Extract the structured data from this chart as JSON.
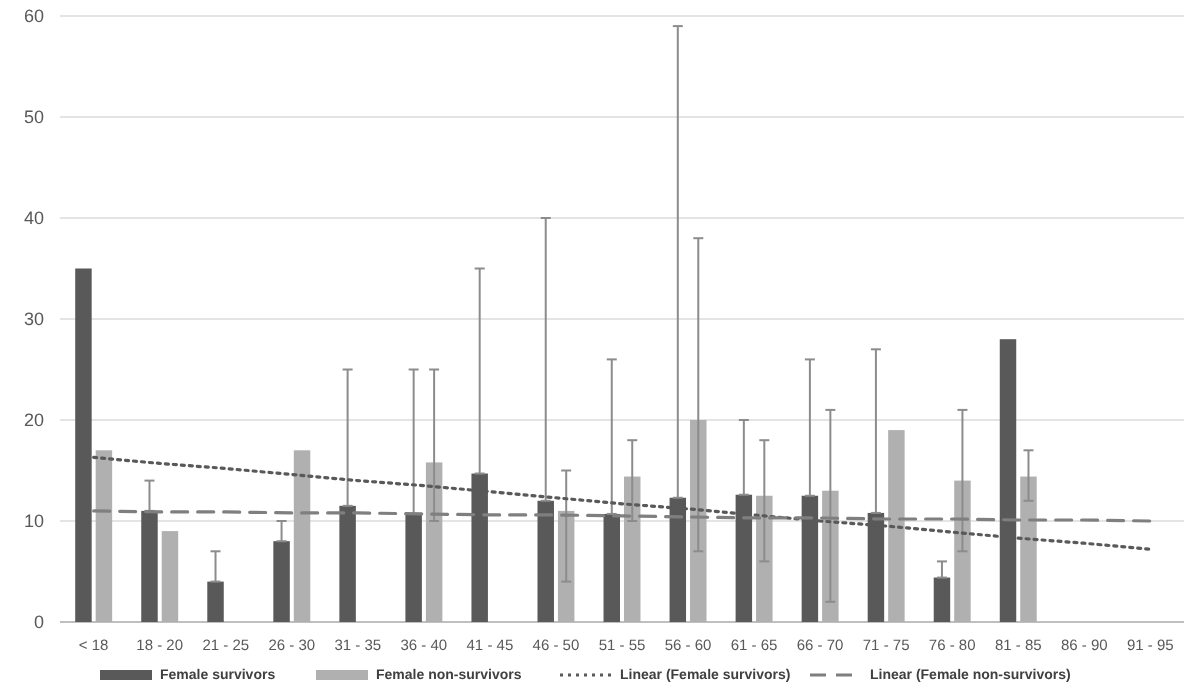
{
  "chart_data": {
    "type": "bar",
    "categories": [
      "< 18",
      "18 - 20",
      "21 - 25",
      "26 - 30",
      "31 - 35",
      "36 - 40",
      "41 - 45",
      "46 - 50",
      "51 - 55",
      "56 - 60",
      "61 - 65",
      "66 - 70",
      "71 - 75",
      "76 - 80",
      "81 - 85",
      "86 - 90",
      "91 - 95"
    ],
    "series": [
      {
        "name": "Female survivors",
        "color": "#595959",
        "values": [
          35,
          11,
          4,
          8,
          11.5,
          10.7,
          14.7,
          12,
          10.7,
          12.3,
          12.6,
          12.5,
          10.8,
          4.4,
          28,
          null,
          null
        ],
        "errors": [
          null,
          [
            11,
            14
          ],
          [
            4,
            7
          ],
          [
            8,
            10
          ],
          [
            11.5,
            25
          ],
          [
            10.7,
            25
          ],
          [
            14.7,
            35
          ],
          [
            12,
            40
          ],
          [
            10.7,
            26
          ],
          [
            12.3,
            59
          ],
          [
            12.6,
            20
          ],
          [
            12.5,
            26
          ],
          [
            10.8,
            27
          ],
          [
            4.4,
            6
          ],
          null,
          null,
          null
        ]
      },
      {
        "name": "Female non-survivors",
        "color": "#b0b0b0",
        "values": [
          17,
          9,
          null,
          17,
          null,
          15.8,
          null,
          11,
          14.4,
          20,
          12.5,
          13,
          19,
          14,
          14.4,
          null,
          null
        ],
        "errors": [
          null,
          null,
          null,
          null,
          null,
          [
            10,
            25
          ],
          null,
          [
            4,
            15
          ],
          [
            10,
            18
          ],
          [
            7,
            38
          ],
          [
            6,
            18
          ],
          [
            2,
            21
          ],
          null,
          [
            7,
            21
          ],
          [
            12,
            17
          ],
          null,
          null
        ]
      },
      {
        "name": "Linear (Female survivors)",
        "type": "line",
        "color": "#595959",
        "line_style": "dotted",
        "values": [
          16.3,
          15.7,
          15.2,
          14.6,
          14.0,
          13.5,
          12.9,
          12.3,
          11.7,
          11.2,
          10.6,
          10.0,
          9.5,
          8.9,
          8.3,
          7.8,
          7.2
        ]
      },
      {
        "name": "Linear (Female non-survivors)",
        "type": "line",
        "color": "#7f7f7f",
        "line_style": "dashed",
        "values": [
          11.0,
          10.9,
          10.9,
          10.8,
          10.8,
          10.7,
          10.6,
          10.6,
          10.5,
          10.4,
          10.3,
          10.3,
          10.2,
          10.2,
          10.1,
          10.1,
          10.0
        ]
      }
    ],
    "ylim": [
      0,
      60
    ],
    "yticks": [
      0,
      10,
      20,
      30,
      40,
      50,
      60
    ],
    "grid": "y",
    "legend": "bottom"
  }
}
